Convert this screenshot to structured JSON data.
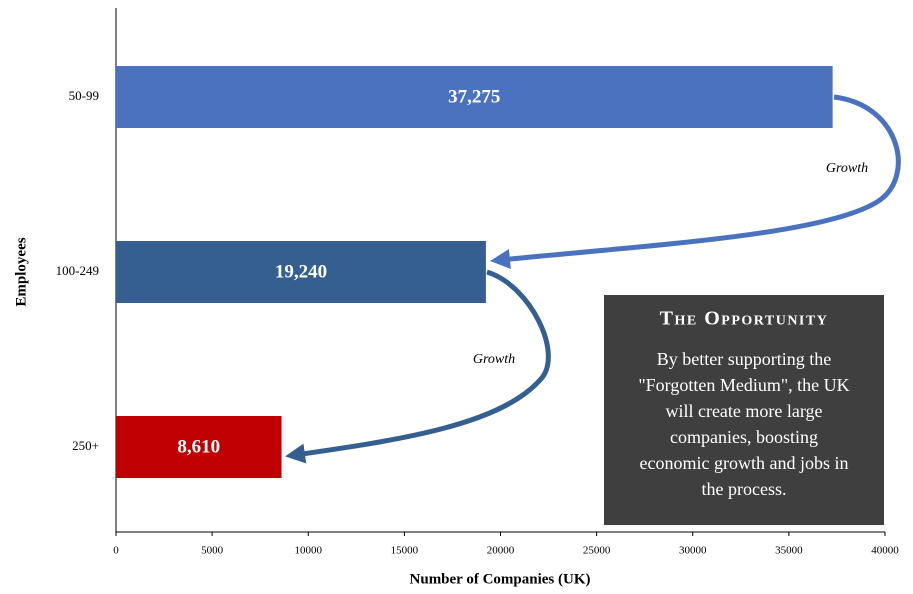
{
  "chart_data": {
    "type": "bar",
    "orientation": "horizontal",
    "categories": [
      "50-99",
      "100-249",
      "250+"
    ],
    "values": [
      37275,
      19240,
      8610
    ],
    "value_labels": [
      "37,275",
      "19,240",
      "8,610"
    ],
    "colors": [
      "#4a72be",
      "#355f91",
      "#c00000"
    ],
    "xlim": [
      0,
      40000
    ],
    "xticks": [
      0,
      5000,
      10000,
      15000,
      20000,
      25000,
      30000,
      35000,
      40000
    ],
    "x_label": "Number of Companies (UK)",
    "y_label": "Employees",
    "annotations": [
      "Growth",
      "Growth"
    ],
    "callout": {
      "title": "The Opportunity",
      "lines": [
        "By better supporting the",
        "\"Forgotten Medium\", the UK",
        "will create more large",
        "companies, boosting",
        "economic growth and jobs in",
        "the process."
      ]
    }
  }
}
